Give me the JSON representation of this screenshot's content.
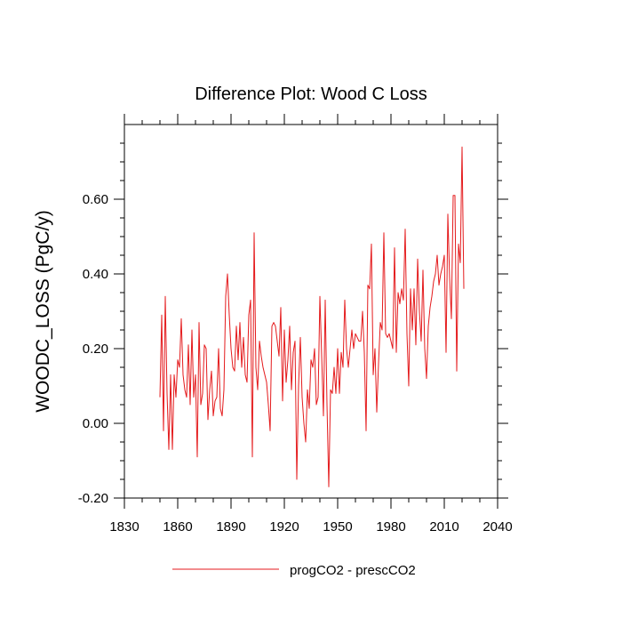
{
  "chart_data": {
    "type": "line",
    "title": "Difference Plot: Wood C Loss",
    "xlabel": "",
    "ylabel": "WOODC_LOSS  (PgC/y)",
    "xlim": [
      1830,
      2040
    ],
    "ylim": [
      -0.2,
      0.8
    ],
    "xticks": [
      1830,
      1860,
      1890,
      1920,
      1950,
      1980,
      2010,
      2040
    ],
    "xtick_labels": [
      "1830",
      "1860",
      "1890",
      "1920",
      "1950",
      "1980",
      "2010",
      "2040"
    ],
    "yticks": [
      -0.2,
      0.0,
      0.2,
      0.4,
      0.6
    ],
    "ytick_labels": [
      "-0.20",
      "0.00",
      "0.20",
      "0.40",
      "0.60"
    ],
    "legend": {
      "position": "bottom",
      "entries": [
        "progCO2 - prescCO2"
      ]
    },
    "series": [
      {
        "name": "progCO2 - prescCO2",
        "color": "#e41a1c",
        "x_start": 1850,
        "x_step": 1,
        "values": [
          0.07,
          0.29,
          -0.02,
          0.34,
          0.08,
          -0.07,
          0.13,
          -0.07,
          0.13,
          0.07,
          0.17,
          0.15,
          0.28,
          0.13,
          0.09,
          0.07,
          0.21,
          0.05,
          0.25,
          0.07,
          0.13,
          -0.09,
          0.27,
          0.05,
          0.08,
          0.21,
          0.2,
          0.01,
          0.09,
          0.14,
          0.02,
          0.06,
          0.07,
          0.2,
          0.04,
          0.02,
          0.09,
          0.34,
          0.4,
          0.29,
          0.2,
          0.15,
          0.14,
          0.26,
          0.17,
          0.27,
          0.15,
          0.23,
          0.13,
          0.11,
          0.29,
          0.33,
          -0.09,
          0.51,
          0.15,
          0.09,
          0.22,
          0.18,
          0.15,
          0.13,
          0.11,
          0.05,
          -0.02,
          0.26,
          0.27,
          0.26,
          0.22,
          0.18,
          0.31,
          0.06,
          0.25,
          0.11,
          0.17,
          0.26,
          0.09,
          0.19,
          0.22,
          -0.15,
          0.1,
          0.23,
          0.07,
          0.0,
          -0.05,
          0.09,
          0.04,
          0.17,
          0.15,
          0.2,
          0.05,
          0.07,
          0.34,
          0.18,
          0.02,
          0.33,
          0.05,
          -0.17,
          0.09,
          0.08,
          0.15,
          0.08,
          0.2,
          0.08,
          0.19,
          0.15,
          0.33,
          0.2,
          0.15,
          0.2,
          0.25,
          0.2,
          0.24,
          0.23,
          0.22,
          0.22,
          0.3,
          0.19,
          -0.02,
          0.37,
          0.36,
          0.48,
          0.13,
          0.2,
          0.03,
          0.16,
          0.27,
          0.25,
          0.51,
          0.24,
          0.23,
          0.24,
          0.22,
          0.2,
          0.47,
          0.19,
          0.35,
          0.32,
          0.36,
          0.33,
          0.52,
          0.24,
          0.1,
          0.36,
          0.25,
          0.36,
          0.21,
          0.44,
          0.3,
          0.22,
          0.41,
          0.2,
          0.12,
          0.26,
          0.31,
          0.34,
          0.38,
          0.4,
          0.45,
          0.37,
          0.4,
          0.42,
          0.45,
          0.19,
          0.56,
          0.39,
          0.28,
          0.61,
          0.61,
          0.14,
          0.48,
          0.43,
          0.74,
          0.36
        ]
      }
    ]
  }
}
